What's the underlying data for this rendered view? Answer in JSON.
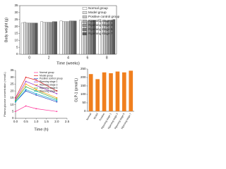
{
  "chart_data": [
    {
      "type": "bar",
      "ylabel": "Body weight (g)",
      "xlabel": "Time (weeks)",
      "categories": [
        "0",
        "2",
        "4",
        "6",
        "8"
      ],
      "series": [
        {
          "name": "Normal group",
          "color": "#ffffff",
          "values": [
            22.5,
            23.5,
            24,
            24.5,
            25
          ]
        },
        {
          "name": "Model group",
          "color": "#e0e0e0",
          "values": [
            23,
            23,
            23.5,
            23,
            23.5
          ]
        },
        {
          "name": "Positive control group",
          "color": "#c8c8c8",
          "values": [
            22.5,
            23,
            23.5,
            24,
            24.5
          ]
        },
        {
          "name": "Ripening stage 1",
          "color": "#b0b0b0",
          "values": [
            22.5,
            23,
            23.5,
            24,
            24
          ]
        },
        {
          "name": "Ripening stage 3",
          "color": "#969696",
          "values": [
            22.5,
            23,
            24,
            24,
            24.5
          ]
        },
        {
          "name": "Ripening stage 5",
          "color": "#7c7c7c",
          "values": [
            22.5,
            23.5,
            24,
            24.5,
            24.5
          ]
        },
        {
          "name": "Ripening stage 7",
          "color": "#5a5a5a",
          "values": [
            22.5,
            23.5,
            24,
            24.5,
            25
          ]
        }
      ],
      "ylim": [
        0,
        35
      ],
      "yticks": [
        0,
        5,
        10,
        15,
        20,
        25,
        30,
        35
      ]
    },
    {
      "type": "line",
      "ylabel": "Plasma glucose concentration (mmol/L)",
      "xlabel": "Time (h)",
      "x": [
        0,
        0.5,
        1,
        2
      ],
      "series": [
        {
          "name": "Normal group",
          "color": "#ff3399",
          "values": [
            5,
            9,
            7,
            5
          ]
        },
        {
          "name": "Model group",
          "color": "#e31a1c",
          "values": [
            15,
            30,
            28,
            20
          ]
        },
        {
          "name": "Positive control group",
          "color": "#1f3fbf",
          "values": [
            12,
            20,
            17,
            12
          ]
        },
        {
          "name": "Ripening stage 1",
          "color": "#9933cc",
          "values": [
            14,
            27,
            24,
            18
          ]
        },
        {
          "name": "Ripening stage 3",
          "color": "#ff9900",
          "values": [
            13,
            25,
            21,
            15
          ]
        },
        {
          "name": "Ripening stage 5",
          "color": "#33aa33",
          "values": [
            13,
            23,
            20,
            14
          ]
        },
        {
          "name": "Ripening stage 7",
          "color": "#00aacc",
          "values": [
            12,
            21,
            18,
            13
          ]
        }
      ],
      "xlim": [
        0,
        2.5
      ],
      "xticks": [
        {
          "value": 0,
          "label": "0.0"
        },
        {
          "value": 0.5,
          "label": "0.5"
        },
        {
          "value": 1,
          "label": "1.0"
        },
        {
          "value": 1.5,
          "label": "1.5"
        },
        {
          "value": 2,
          "label": "2.0"
        },
        {
          "value": 2.5,
          "label": "2.5"
        }
      ],
      "ylim": [
        0,
        35
      ],
      "yticks": [
        0,
        5,
        10,
        15,
        20,
        25,
        30,
        35
      ]
    },
    {
      "type": "bar",
      "ylabel": "GLP-1 (pmol/L)",
      "categories": [
        "Normal",
        "Model",
        "Positive",
        "Ripening stage 1",
        "Ripening stage 3",
        "Ripening stage 5",
        "Ripening stage 7"
      ],
      "values": [
        220,
        190,
        230,
        225,
        235,
        230,
        240
      ],
      "color": "#f07f1e",
      "ylim": [
        0,
        250
      ],
      "yticks": [
        0,
        50,
        100,
        150,
        200,
        250
      ]
    }
  ]
}
